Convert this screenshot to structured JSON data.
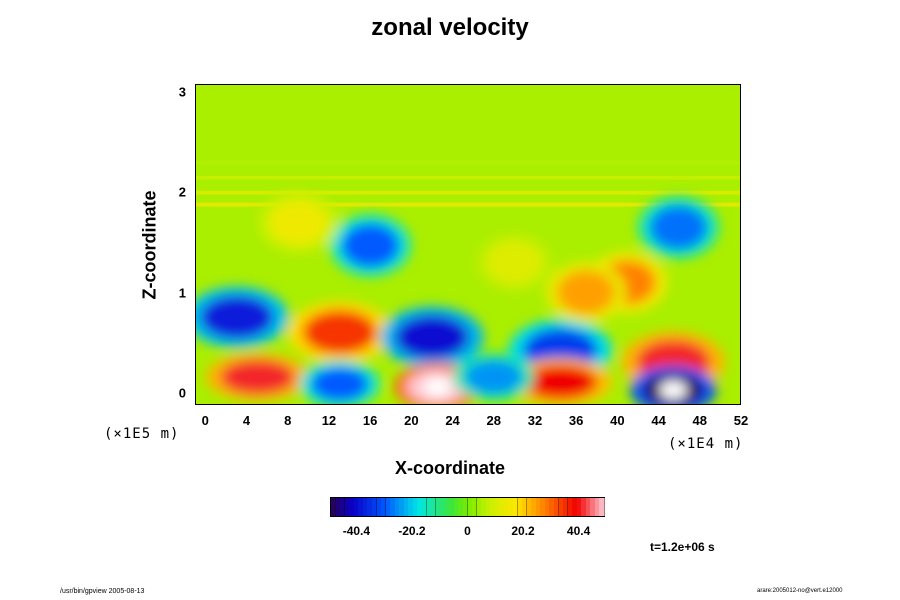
{
  "chart_data": {
    "type": "heatmap",
    "title": "zonal velocity",
    "xlabel": "X-coordinate",
    "ylabel": "Z-coordinate",
    "x_unit": "(×1E4 m)",
    "y_unit": "(×1E5 m)",
    "x_ticks": [
      "0",
      "4",
      "8",
      "12",
      "16",
      "20",
      "24",
      "28",
      "32",
      "36",
      "40",
      "44",
      "48",
      "52"
    ],
    "y_ticks": [
      "0",
      "1",
      "2",
      "3"
    ],
    "xlim": [
      -1,
      52
    ],
    "ylim": [
      -0.12,
      3.08
    ],
    "colorbar": {
      "ticks": [
        "-40.4",
        "-20.2",
        "0",
        "20.2",
        "40.4"
      ],
      "range": [
        -50,
        50
      ]
    },
    "features": [
      {
        "x": 3,
        "z": 0.75,
        "value": -38
      },
      {
        "x": 13,
        "z": 0.6,
        "value": 35
      },
      {
        "x": 22,
        "z": 0.55,
        "value": -40
      },
      {
        "x": 34.5,
        "z": 0.42,
        "value": -34
      },
      {
        "x": 45.5,
        "z": 0.3,
        "value": 42
      },
      {
        "x": 5,
        "z": 0.15,
        "value": 42
      },
      {
        "x": 22.5,
        "z": 0.05,
        "value": 55
      },
      {
        "x": 34.5,
        "z": 0.1,
        "value": 40
      },
      {
        "x": 45.5,
        "z": 0.02,
        "value": -55
      },
      {
        "x": 13,
        "z": 0.08,
        "value": -30
      },
      {
        "x": 28,
        "z": 0.15,
        "value": -25
      },
      {
        "x": 16,
        "z": 1.47,
        "value": -30
      },
      {
        "x": 46,
        "z": 1.65,
        "value": -28
      },
      {
        "x": 41,
        "z": 1.1,
        "value": 28
      },
      {
        "x": 37,
        "z": 1.0,
        "value": 25
      },
      {
        "x": 9,
        "z": 1.7,
        "value": 15
      },
      {
        "x": 30,
        "z": 1.3,
        "value": 12
      }
    ]
  },
  "annotations": {
    "time_label": "t=1.2e+06 s",
    "footer_left": "/usr/bin/gpview 2005-08-13",
    "footer_right": "arare:2005012-no@vert.e12000"
  }
}
